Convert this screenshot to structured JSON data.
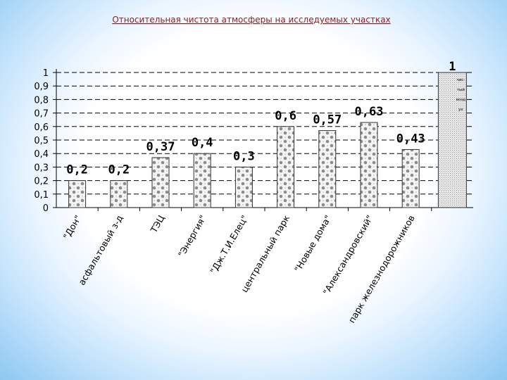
{
  "chart_data": {
    "type": "bar",
    "title": "Относительная чистота атмосферы на исследуемых участках",
    "categories": [
      "\"Дон\"",
      "асфальтовый з-д",
      "ТЭЦ",
      "\"Энергия\"",
      "\"Дж.Т.И.Елец\"",
      "центральный парк",
      "\"Новые дома\"",
      "\"Александровский\"",
      "парк железнодорожников",
      ""
    ],
    "values": [
      0.2,
      0.2,
      0.37,
      0.4,
      0.3,
      0.6,
      0.57,
      0.63,
      0.43,
      1
    ],
    "data_labels": [
      "0,2",
      "0,2",
      "0,37",
      "0,4",
      "0,3",
      "0,6",
      "0,57",
      "0,63",
      "0,43",
      "1"
    ],
    "yticks": [
      "0",
      "0,1",
      "0,2",
      "0,3",
      "0,4",
      "0,5",
      "0,6",
      "0,7",
      "0,8",
      "0,9",
      "1"
    ],
    "ylim": [
      0,
      1
    ],
    "grid": true,
    "reference_note": [
      "чис-",
      "тый",
      "возд",
      "ух"
    ],
    "xlabel": "",
    "ylabel": ""
  }
}
